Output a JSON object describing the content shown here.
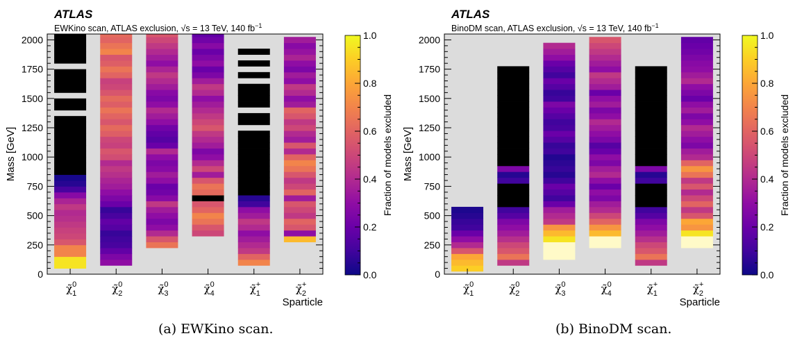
{
  "figure": {
    "colors": {
      "background": "#dcdcdc",
      "black_fill": "#000000",
      "overflow_fill": "#fffac8",
      "colormap": [
        "#0d0887",
        "#41049d",
        "#6a00a8",
        "#8f0da4",
        "#b12a90",
        "#cc4778",
        "#e16462",
        "#f2844b",
        "#fca636",
        "#fcce25",
        "#f0f921"
      ]
    },
    "panels": [
      {
        "caption": "(a) EWKino scan.",
        "atlas_label": "ATLAS",
        "subtitle_prefix": "EWKino scan, ATLAS exclusion,",
        "sqrt_s": "√s",
        "subtitle_suffix": " = 13 TeV, 140 fb",
        "subtitle_sup": "−1",
        "ylabel": "Mass [GeV]",
        "xlabel": "Sparticle",
        "colorbar_label": "Fraction of models excluded",
        "yticks": [
          "0",
          "250",
          "500",
          "750",
          "1000",
          "1250",
          "1500",
          "1750",
          "2000"
        ],
        "colorbar_ticks": [
          "0.0",
          "0.2",
          "0.4",
          "0.6",
          "0.8",
          "1.0"
        ],
        "sparticles": [
          {
            "base": "χ̃",
            "sup": "0",
            "sub": "1"
          },
          {
            "base": "χ̃",
            "sup": "0",
            "sub": "2"
          },
          {
            "base": "χ̃",
            "sup": "0",
            "sub": "3"
          },
          {
            "base": "χ̃",
            "sup": "0",
            "sub": "4"
          },
          {
            "base": "χ̃",
            "sup": "+",
            "sub": "1"
          },
          {
            "base": "χ̃",
            "sup": "+",
            "sub": "2"
          }
        ]
      },
      {
        "caption": "(b) BinoDM scan.",
        "atlas_label": "ATLAS",
        "subtitle_prefix": "BinoDM scan, ATLAS exclusion,",
        "sqrt_s": "√s",
        "subtitle_suffix": " = 13 TeV, 140 fb",
        "subtitle_sup": "−1",
        "ylabel": "Mass [GeV]",
        "xlabel": "Sparticle",
        "colorbar_label": "Fraction of models excluded",
        "yticks": [
          "0",
          "250",
          "500",
          "750",
          "1000",
          "1250",
          "1500",
          "1750",
          "2000"
        ],
        "colorbar_ticks": [
          "0.0",
          "0.2",
          "0.4",
          "0.6",
          "0.8",
          "1.0"
        ],
        "sparticles": [
          {
            "base": "χ̃",
            "sup": "0",
            "sub": "1"
          },
          {
            "base": "χ̃",
            "sup": "0",
            "sub": "2"
          },
          {
            "base": "χ̃",
            "sup": "0",
            "sub": "3"
          },
          {
            "base": "χ̃",
            "sup": "0",
            "sub": "4"
          },
          {
            "base": "χ̃",
            "sup": "+",
            "sub": "1"
          },
          {
            "base": "χ̃",
            "sup": "+",
            "sub": "2"
          }
        ]
      }
    ]
  },
  "chart_data": [
    {
      "type": "heatmap",
      "title": "EWKino scan, ATLAS exclusion, √s = 13 TeV, 140 fb−1",
      "xlabel": "Sparticle",
      "ylabel": "Mass [GeV]",
      "zlabel": "Fraction of models excluded",
      "categories": [
        "χ̃1 0",
        "χ̃2 0",
        "χ̃3 0",
        "χ̃4 0",
        "χ̃1 +",
        "χ̃2 +"
      ],
      "ylim": [
        0,
        2050
      ],
      "zlim": [
        0,
        1
      ],
      "bin_width": 50,
      "grid": false,
      "columns": [
        {
          "start": 50,
          "fractions": [
            0.95,
            0.95,
            0.7,
            0.7,
            0.55,
            0.5,
            0.48,
            0.45,
            0.42,
            0.4,
            0.45,
            0.38,
            0.28,
            0.12,
            0.05,
            0.02,
            "black",
            "black",
            "black",
            "black",
            "black",
            "black",
            "black",
            "black",
            "black",
            "black",
            "gap",
            "black",
            "black",
            "gap",
            "black",
            "black",
            "black",
            "black",
            "gap",
            "black",
            "black",
            "black",
            "black",
            "black",
            "black"
          ]
        },
        {
          "start": 75,
          "fractions": [
            0.3,
            0.25,
            0.18,
            0.12,
            0.1,
            0.08,
            0.15,
            0.18,
            0.12,
            0.08,
            0.2,
            0.25,
            0.3,
            0.35,
            0.38,
            0.42,
            0.45,
            0.4,
            0.52,
            0.55,
            0.48,
            0.5,
            0.58,
            0.62,
            0.55,
            0.6,
            0.65,
            0.58,
            0.62,
            0.55,
            0.5,
            0.48,
            0.6,
            0.65,
            0.58,
            0.55,
            0.7,
            0.65,
            0.6,
            0.62,
            0.72,
            0.68,
            0.5,
            0.55,
            0.6,
            0.4,
            0.85,
            0.2,
            0.35,
            1.0
          ]
        },
        {
          "start": 225,
          "fractions": [
            0.65,
            0.55,
            0.4,
            0.3,
            0.25,
            0.3,
            0.35,
            0.45,
            0.28,
            0.22,
            0.2,
            0.3,
            0.35,
            0.28,
            0.25,
            0.3,
            0.4,
            0.2,
            0.15,
            0.18,
            0.22,
            0.3,
            0.35,
            0.4,
            0.3,
            0.25,
            0.28,
            0.35,
            0.4,
            0.45,
            0.38,
            0.3,
            0.35,
            0.4,
            0.45,
            0.5,
            0.55
          ]
        },
        {
          "start": 325,
          "fractions": [
            0.5,
            0.55,
            0.65,
            0.7,
            0.6,
            0.55,
            "black",
            0.62,
            0.65,
            0.55,
            0.35,
            0.5,
            0.4,
            0.3,
            0.25,
            0.35,
            0.4,
            0.45,
            0.55,
            0.5,
            0.45,
            0.4,
            0.35,
            0.3,
            0.4,
            0.45,
            0.35,
            0.25,
            0.2,
            0.3,
            0.25,
            0.2,
            0.28,
            0.22,
            0.18
          ]
        },
        {
          "start": 75,
          "fractions": [
            0.7,
            0.6,
            0.45,
            0.4,
            0.35,
            0.3,
            0.4,
            0.45,
            0.35,
            0.3,
            0.1,
            0.05,
            "black",
            "black",
            "black",
            "black",
            "black",
            "black",
            "black",
            "black",
            "black",
            "black",
            "black",
            "gap",
            "black",
            "black",
            "gap",
            "black",
            "black",
            "black",
            "black",
            "gap",
            "black",
            "gap",
            "black",
            "gap",
            "black"
          ]
        },
        {
          "start": 275,
          "fractions": [
            0.85,
            0.3,
            0.55,
            0.6,
            0.45,
            0.5,
            0.55,
            0.35,
            0.6,
            0.5,
            0.45,
            0.55,
            0.65,
            0.7,
            0.6,
            0.4,
            0.55,
            0.35,
            0.4,
            0.5,
            0.45,
            0.55,
            0.6,
            0.35,
            0.3,
            0.4,
            0.45,
            0.3,
            0.35,
            0.25,
            0.3,
            0.38,
            0.32,
            0.28,
            0.35
          ]
        }
      ]
    },
    {
      "type": "heatmap",
      "title": "BinoDM scan, ATLAS exclusion, √s = 13 TeV, 140 fb−1",
      "xlabel": "Sparticle",
      "ylabel": "Mass [GeV]",
      "zlabel": "Fraction of models excluded",
      "categories": [
        "χ̃1 0",
        "χ̃2 0",
        "χ̃3 0",
        "χ̃4 0",
        "χ̃1 +",
        "χ̃2 +"
      ],
      "ylim": [
        0,
        2050
      ],
      "zlim": [
        0,
        1
      ],
      "bin_width": 50,
      "grid": false,
      "columns": [
        {
          "start": 25,
          "fractions": [
            0.9,
            0.85,
            0.8,
            0.55,
            0.4,
            0.3,
            0.2,
            0.1,
            0.08,
            0.05,
            0.03
          ]
        },
        {
          "start": 75,
          "fractions": [
            0.45,
            0.65,
            0.55,
            0.5,
            0.42,
            0.35,
            0.3,
            0.25,
            0.15,
            0.1,
            "black",
            "black",
            "black",
            "black",
            0.1,
            0.05,
            0.25,
            "black",
            "black",
            "black",
            "black",
            "black",
            "black",
            "black",
            "black",
            "black",
            "black",
            "black",
            "black",
            "black",
            "black",
            "black",
            "black",
            "black"
          ]
        },
        {
          "start": 125,
          "fractions": [
            "over",
            "over",
            "over",
            0.95,
            0.85,
            0.75,
            0.45,
            0.4,
            0.35,
            0.2,
            0.1,
            0.15,
            0.2,
            0.1,
            0.05,
            0.08,
            0.06,
            0.04,
            0.1,
            0.08,
            0.15,
            0.2,
            0.12,
            0.1,
            0.15,
            0.2,
            0.25,
            0.1,
            0.08,
            0.15,
            0.2,
            0.1,
            0.15,
            0.2,
            0.3,
            0.35,
            0.4
          ]
        },
        {
          "start": 225,
          "fractions": [
            "over",
            "over",
            0.85,
            0.75,
            0.6,
            0.5,
            0.4,
            0.35,
            0.25,
            0.3,
            0.2,
            0.3,
            0.4,
            0.35,
            0.25,
            0.3,
            0.2,
            0.15,
            0.25,
            0.3,
            0.35,
            0.4,
            0.3,
            0.25,
            0.35,
            0.3,
            0.2,
            0.35,
            0.4,
            0.45,
            0.3,
            0.35,
            0.4,
            0.45,
            0.5,
            0.55
          ]
        },
        {
          "start": 75,
          "fractions": [
            0.45,
            0.65,
            0.55,
            0.5,
            0.42,
            0.35,
            0.3,
            0.25,
            0.15,
            0.1,
            "black",
            "black",
            "black",
            "black",
            0.1,
            0.05,
            0.25,
            "black",
            "black",
            "black",
            "black",
            "black",
            "black",
            "black",
            "black",
            "black",
            "black",
            "black",
            "black",
            "black",
            "black",
            "black",
            "black",
            "black"
          ]
        },
        {
          "start": 225,
          "fractions": [
            "over",
            "over",
            0.95,
            0.75,
            0.8,
            0.55,
            0.45,
            0.6,
            0.5,
            0.4,
            0.55,
            0.45,
            0.65,
            0.75,
            0.6,
            0.4,
            0.35,
            0.25,
            0.3,
            0.35,
            0.4,
            0.3,
            0.25,
            0.35,
            0.3,
            0.2,
            0.25,
            0.3,
            0.4,
            0.35,
            0.3,
            0.28,
            0.25,
            0.22,
            0.2,
            0.18
          ]
        }
      ]
    }
  ]
}
